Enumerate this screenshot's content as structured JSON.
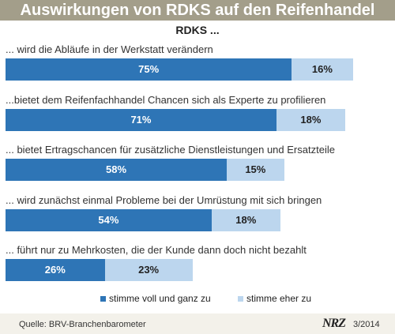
{
  "header": {
    "title": "Auswirkungen von RDKS auf den Reifenhandel"
  },
  "chart_data": {
    "type": "bar",
    "orientation": "horizontal",
    "stacked": true,
    "title": "RDKS ...",
    "categories": [
      "... wird die Abläufe in der Werkstatt verändern",
      "...bietet dem Reifenfachhandel Chancen sich als Experte zu profilieren",
      "... bietet Ertragschancen für zusätzliche Dienstleistungen und Ersatzteile",
      "... wird zunächst einmal Probleme bei der Umrüstung mit sich bringen",
      "... führt nur zu Mehrkosten, die der Kunde dann doch nicht bezahlt"
    ],
    "series": [
      {
        "name": "stimme voll und ganz zu",
        "color": "#2e75b6",
        "values": [
          75,
          71,
          58,
          54,
          26
        ],
        "labels": [
          "75%",
          "71%",
          "58%",
          "54%",
          "26%"
        ]
      },
      {
        "name": "stimme eher zu",
        "color": "#bcd6ee",
        "values": [
          16,
          18,
          15,
          18,
          23
        ],
        "labels": [
          "16%",
          "18%",
          "15%",
          "18%",
          "23%"
        ]
      }
    ],
    "xlim": [
      0,
      100
    ],
    "legend_position": "bottom",
    "grid": false
  },
  "footer": {
    "source": "Quelle:  BRV-Branchenbarometer",
    "brand": "NRZ",
    "issue": "3/2014"
  }
}
